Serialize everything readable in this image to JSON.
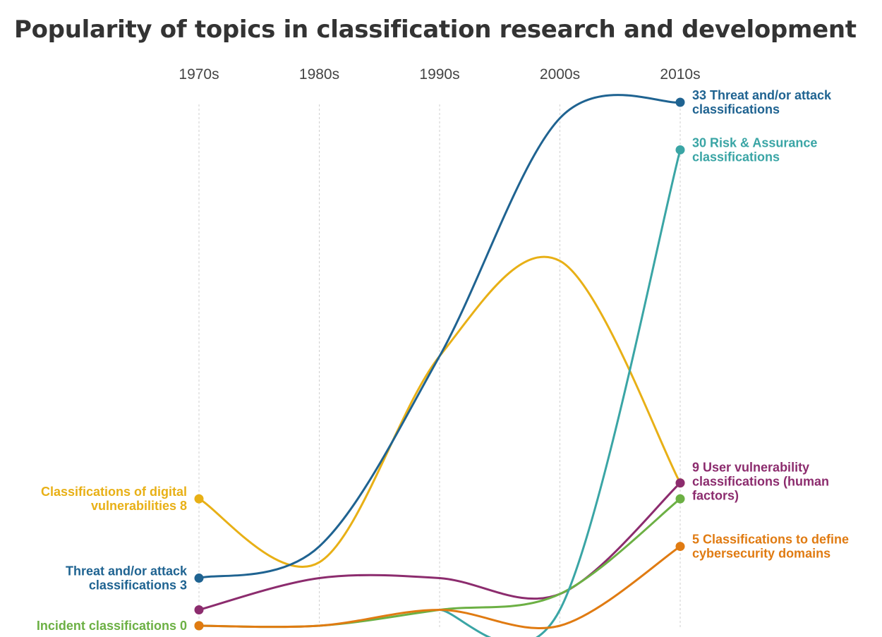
{
  "chart_data": {
    "type": "line",
    "title": "Popularity of topics in classification research and development",
    "categories": [
      "1970s",
      "1980s",
      "1990s",
      "2000s",
      "2010s"
    ],
    "ylim": [
      0,
      33
    ],
    "grid": "vertical dashed",
    "legend": "direct labels at line ends",
    "series": [
      {
        "name": "Classifications of digital vulnerabilities",
        "color": "#E8B016",
        "values": [
          8,
          4,
          17,
          23,
          9
        ],
        "start_label": [
          "Classifications of digital",
          "vulnerabilities 8"
        ],
        "end_label": []
      },
      {
        "name": "Threat and/or attack classifications",
        "color": "#1F6391",
        "values": [
          3,
          5,
          17,
          32,
          33
        ],
        "start_label": [
          "Threat and/or attack",
          "classifications 3"
        ],
        "end_label": [
          "33 Threat and/or attack",
          "classifications"
        ]
      },
      {
        "name": "User vulnerability classifications (human factors)",
        "color": "#8C2C6E",
        "values": [
          1,
          3,
          3,
          2,
          9
        ],
        "start_label": [],
        "end_label": [
          "9 User vulnerability",
          "classifications (human",
          "factors)"
        ]
      },
      {
        "name": "Incident classifications",
        "color": "#6CB044",
        "values": [
          0,
          0,
          1,
          2,
          8
        ],
        "start_label": [
          "Incident classifications 0"
        ],
        "end_label": []
      },
      {
        "name": "Risk & Assurance classifications",
        "color": "#3AA5A5",
        "values": [
          null,
          null,
          1,
          1,
          30
        ],
        "start_label": [],
        "end_label": [
          "30 Risk & Assurance",
          "classifications"
        ]
      },
      {
        "name": "Classifications to define cybersecurity domains",
        "color": "#E07B12",
        "values": [
          0,
          0,
          1,
          0,
          5
        ],
        "start_label": [],
        "end_label": [
          "5 Classifications to define",
          "cybersecurity domains"
        ]
      }
    ]
  }
}
